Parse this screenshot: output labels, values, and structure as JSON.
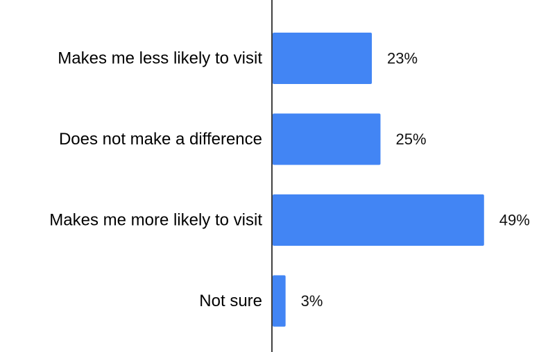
{
  "chart_data": {
    "type": "bar",
    "orientation": "horizontal",
    "categories": [
      "Makes me less likely to visit",
      "Does not make a difference",
      "Makes me more likely to visit",
      "Not sure"
    ],
    "values": [
      23,
      25,
      49,
      3
    ],
    "value_labels": [
      "23%",
      "25%",
      "49%",
      "3%"
    ],
    "unit": "%",
    "xlim": [
      0,
      50
    ],
    "grid": false,
    "legend": "none",
    "bar_color": "#4285f4",
    "axis_color": "#000000"
  }
}
